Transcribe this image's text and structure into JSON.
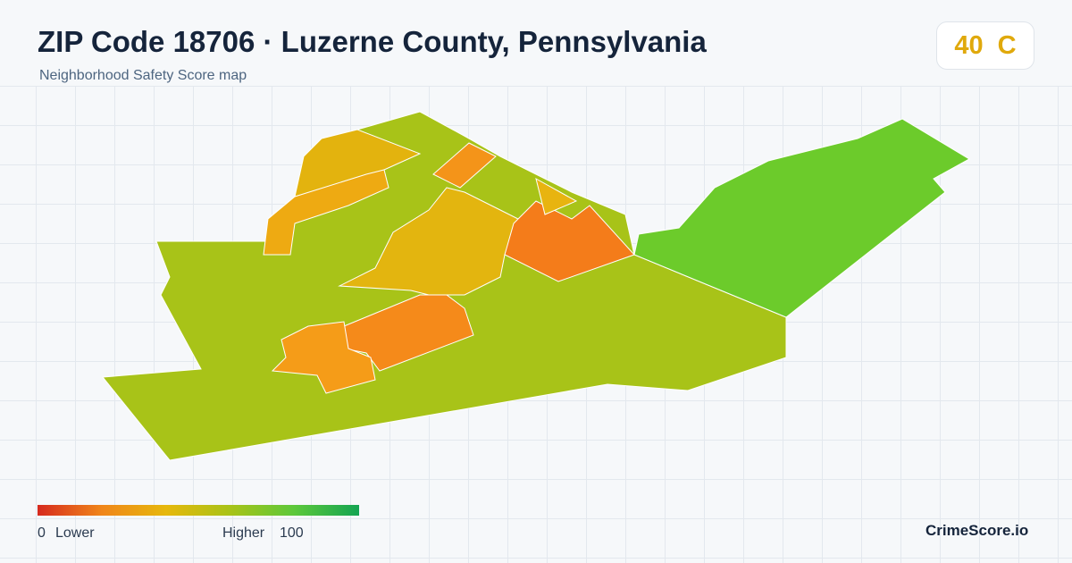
{
  "header": {
    "title": "ZIP Code 18706 · Luzerne County, Pennsylvania",
    "subtitle": "Neighborhood Safety Score map"
  },
  "score": {
    "value": 40,
    "grade": "C"
  },
  "legend": {
    "min": 0,
    "min_label": "Lower",
    "max_label": "Higher",
    "max": 100
  },
  "brand": "CrimeScore.io"
}
